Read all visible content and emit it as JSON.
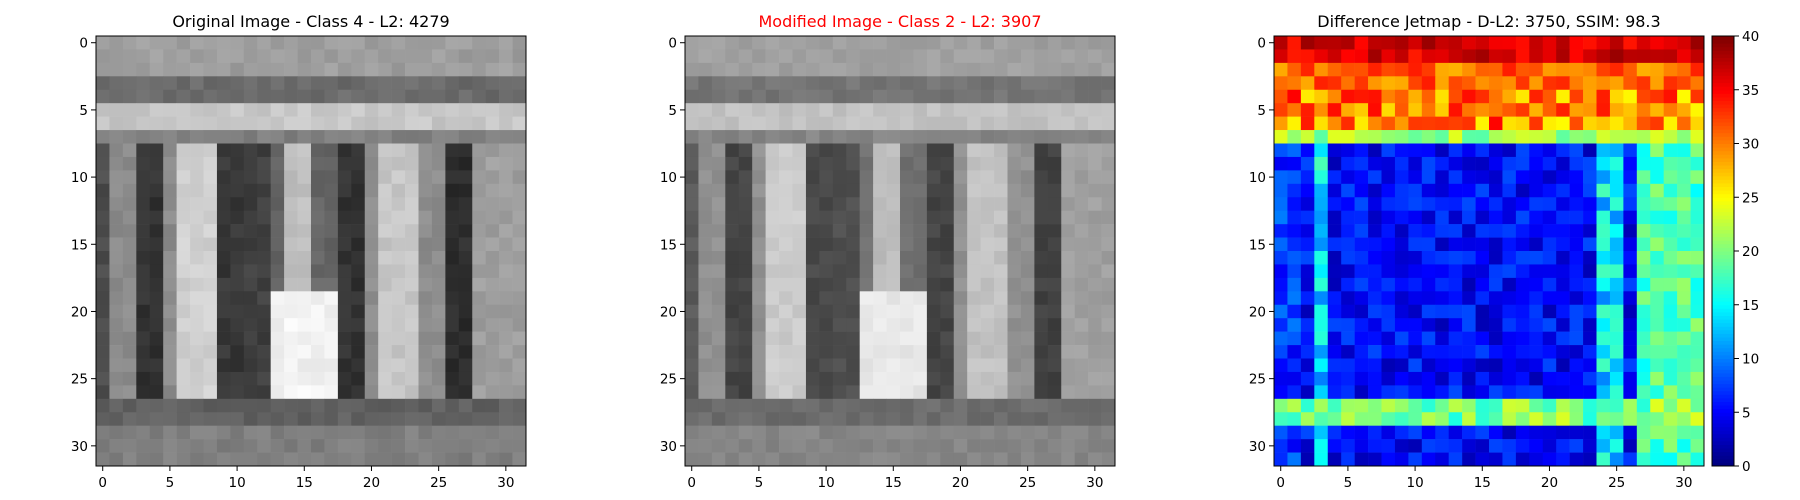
{
  "chart_data": [
    {
      "type": "heatmap",
      "title": "Original Image - Class 4 - L2: 4279",
      "title_color": "#000000",
      "colormap": "gray",
      "xlim": [
        -0.5,
        31.5
      ],
      "ylim": [
        31.5,
        -0.5
      ],
      "xticks": [
        "0",
        "5",
        "10",
        "15",
        "20",
        "25",
        "30"
      ],
      "yticks": [
        "0",
        "5",
        "10",
        "15",
        "20",
        "25",
        "30"
      ],
      "grid": false,
      "description_values": "32x32 grayscale image of a house number, digits dark/light vertical strokes"
    },
    {
      "type": "heatmap",
      "title": "Modified Image - Class 2 - L2: 3907",
      "title_color": "#ff0000",
      "colormap": "gray",
      "xlim": [
        -0.5,
        31.5
      ],
      "ylim": [
        31.5,
        -0.5
      ],
      "xticks": [
        "0",
        "5",
        "10",
        "15",
        "20",
        "25",
        "30"
      ],
      "yticks": [
        "0",
        "5",
        "10",
        "15",
        "20",
        "25",
        "30"
      ],
      "grid": false
    },
    {
      "type": "heatmap",
      "title": "Difference Jetmap - D-L2: 3750, SSIM: 98.3",
      "title_color": "#000000",
      "colormap": "jet",
      "xlim": [
        -0.5,
        31.5
      ],
      "ylim": [
        31.5,
        -0.5
      ],
      "xticks": [
        "0",
        "5",
        "10",
        "15",
        "20",
        "25",
        "30"
      ],
      "yticks": [
        "0",
        "5",
        "10",
        "15",
        "20",
        "25",
        "30"
      ],
      "colorbar": {
        "range": [
          0,
          40
        ],
        "ticks": [
          "0",
          "5",
          "10",
          "15",
          "20",
          "25",
          "30",
          "35",
          "40"
        ]
      },
      "grid": false
    }
  ]
}
